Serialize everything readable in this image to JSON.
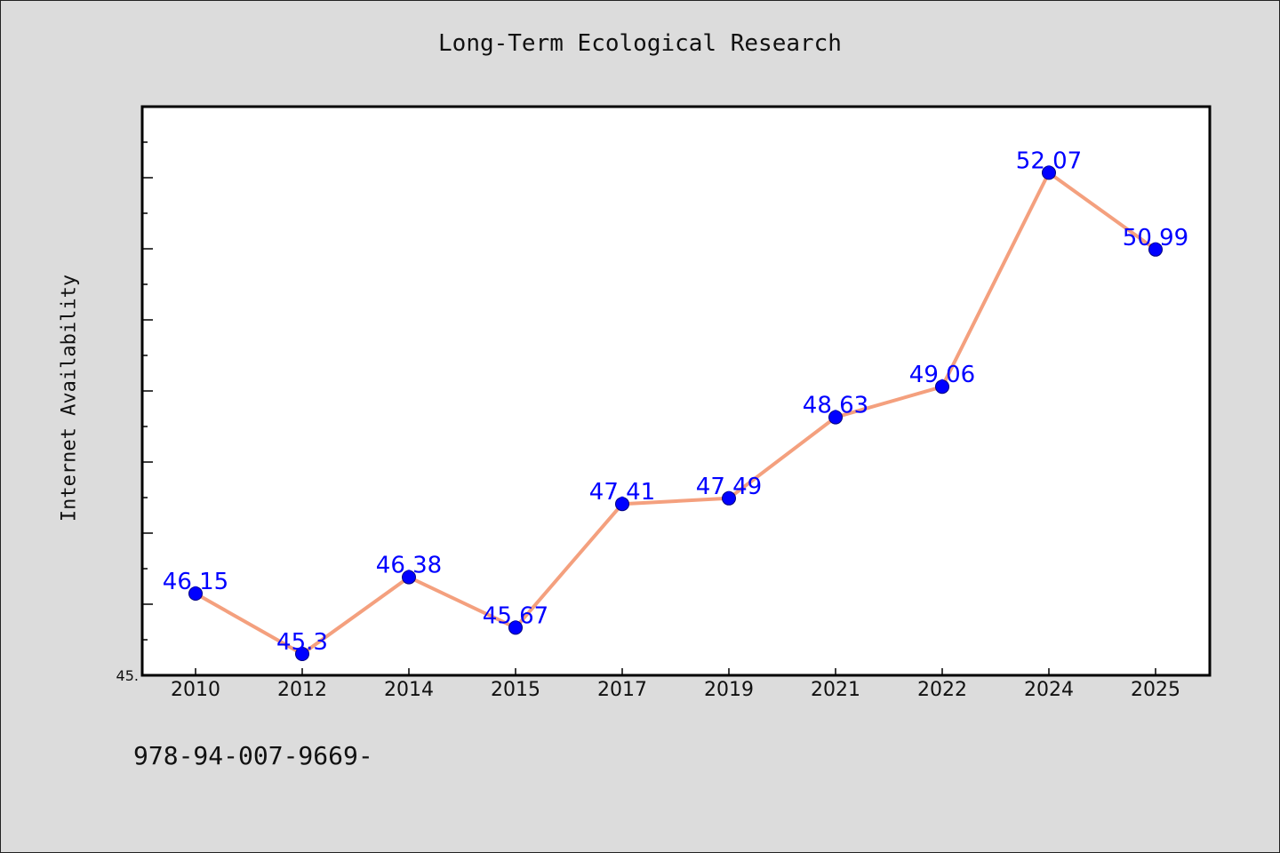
{
  "chart_data": {
    "type": "line",
    "title": "Long-Term Ecological Research",
    "xlabel": "",
    "ylabel": "Internet Availability",
    "categories": [
      "2010",
      "2012",
      "2014",
      "2015",
      "2017",
      "2019",
      "2021",
      "2022",
      "2024",
      "2025"
    ],
    "series": [
      {
        "values": [
          46.15,
          45.3,
          46.38,
          45.67,
          47.41,
          47.49,
          48.63,
          49.06,
          52.07,
          50.99
        ],
        "data_labels": [
          "46.15",
          "45.3",
          "46.38",
          "45.67",
          "47.41",
          "47.49",
          "48.63",
          "49.06",
          "52.07",
          "50.99"
        ]
      }
    ],
    "ylim": [
      45.0,
      53.0
    ],
    "y_tick_labels": [
      "45."
    ],
    "grid": false,
    "colors": {
      "line": "#f4a07e",
      "marker": "#0000ff",
      "marker_edge": "#000080",
      "data_label": "#0000ff",
      "plot_bg": "#ffffff",
      "page_bg": "#dcdcdc"
    }
  },
  "footer_text": "978-94-007-9669-"
}
